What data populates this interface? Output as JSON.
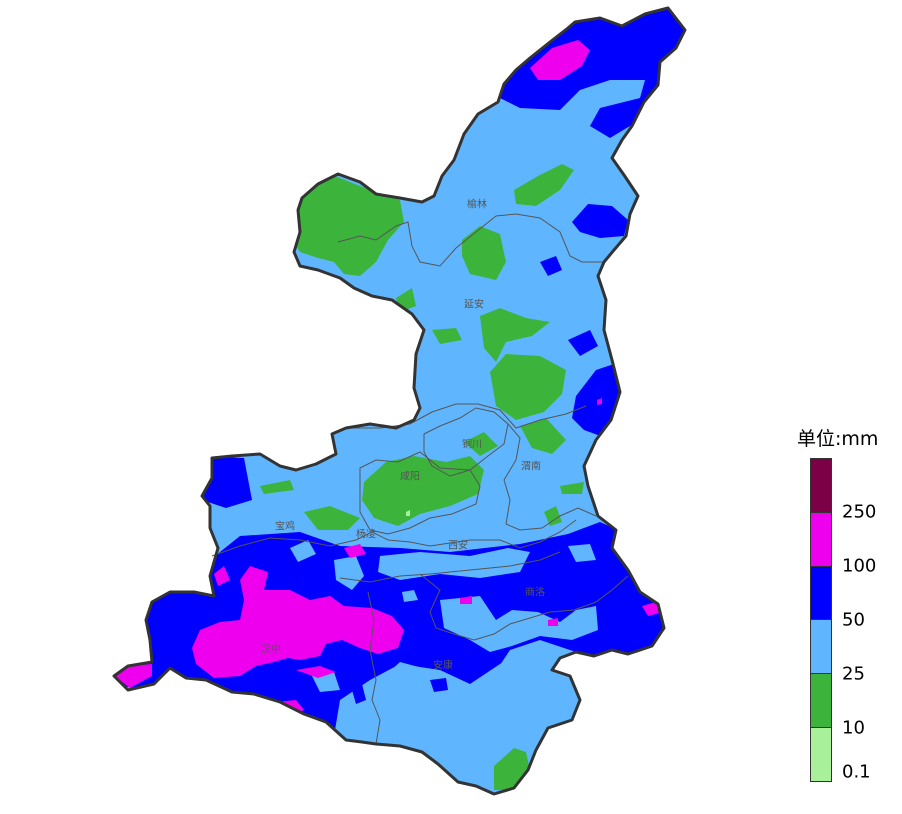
{
  "legend": {
    "title": "单位:mm",
    "ticks": [
      "250",
      "100",
      "50",
      "25",
      "10",
      "0.1"
    ],
    "colors": [
      "#7b0045",
      "#ee00ee",
      "#0000ff",
      "#5fb6ff",
      "#3cb43c",
      "#a8f09a"
    ]
  },
  "cities": [
    {
      "name": "榆林"
    },
    {
      "name": "延安"
    },
    {
      "name": "铜川"
    },
    {
      "name": "渭南"
    },
    {
      "name": "咸阳"
    },
    {
      "name": "宝鸡"
    },
    {
      "name": "杨凌"
    },
    {
      "name": "西安"
    },
    {
      "name": "商洛"
    },
    {
      "name": "汉中"
    },
    {
      "name": "安康"
    }
  ],
  "colors": {
    "outline": "#333333",
    "inner_border": "#555555"
  }
}
